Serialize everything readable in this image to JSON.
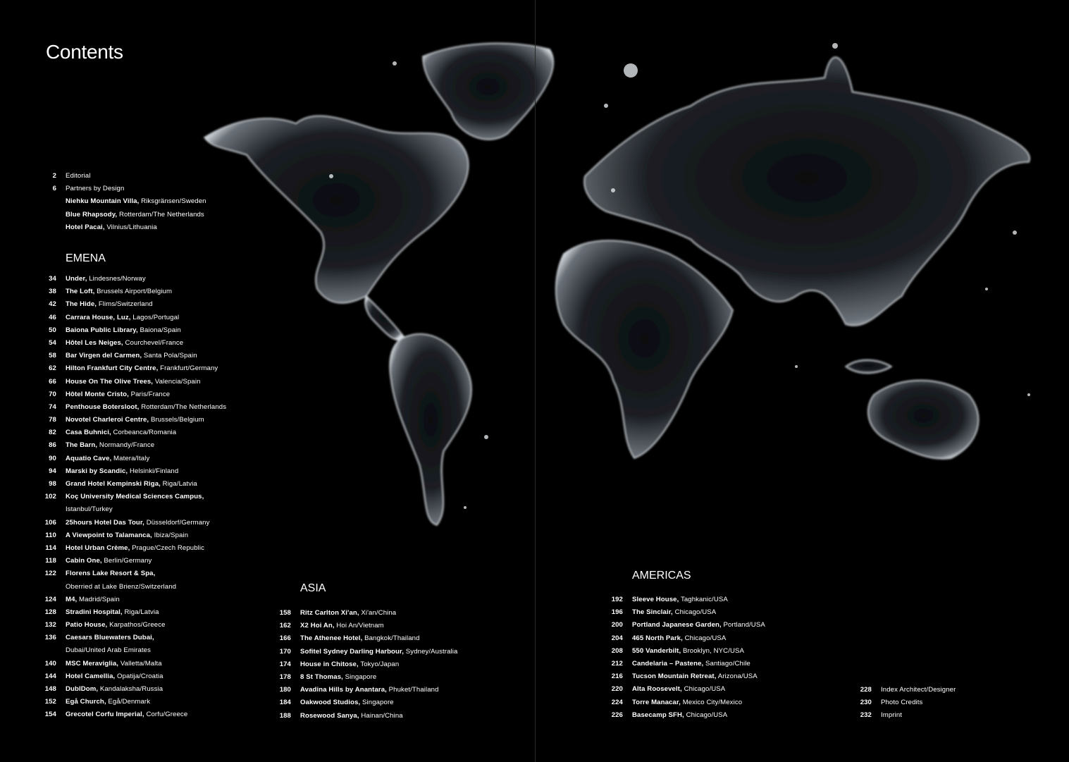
{
  "title": "Contents",
  "intro": [
    {
      "page": "2",
      "bold": "",
      "rest": "Editorial"
    },
    {
      "page": "6",
      "bold": "",
      "rest": "Partners by Design"
    },
    {
      "page": "",
      "bold": "Niehku Mountain Villa,",
      "rest": " Riksgränsen/Sweden"
    },
    {
      "page": "",
      "bold": "Blue Rhapsody,",
      "rest": " Rotterdam/The Netherlands"
    },
    {
      "page": "",
      "bold": "Hotel Pacai,",
      "rest": " Vilnius/Lithuania"
    }
  ],
  "sections": {
    "emena": {
      "heading": "EMENA",
      "entries": [
        {
          "page": "34",
          "bold": "Under,",
          "rest": " Lindesnes/Norway"
        },
        {
          "page": "38",
          "bold": "The Loft,",
          "rest": " Brussels Airport/Belgium"
        },
        {
          "page": "42",
          "bold": "The Hide,",
          "rest": " Flims/Switzerland"
        },
        {
          "page": "46",
          "bold": "Carrara House, Luz,",
          "rest": " Lagos/Portugal"
        },
        {
          "page": "50",
          "bold": "Baiona Public Library,",
          "rest": " Baiona/Spain"
        },
        {
          "page": "54",
          "bold": "Hôtel Les Neiges,",
          "rest": " Courchevel/France"
        },
        {
          "page": "58",
          "bold": "Bar Virgen del Carmen,",
          "rest": " Santa Pola/Spain"
        },
        {
          "page": "62",
          "bold": "Hilton Frankfurt City Centre,",
          "rest": " Frankfurt/Germany"
        },
        {
          "page": "66",
          "bold": "House On The Olive Trees,",
          "rest": " Valencia/Spain"
        },
        {
          "page": "70",
          "bold": "Hôtel Monte Cristo,",
          "rest": " Paris/France"
        },
        {
          "page": "74",
          "bold": "Penthouse Botersloot,",
          "rest": " Rotterdam/The Netherlands"
        },
        {
          "page": "78",
          "bold": "Novotel Charleroi Centre,",
          "rest": " Brussels/Belgium"
        },
        {
          "page": "82",
          "bold": "Casa Buhnici,",
          "rest": " Corbeanca/Romania"
        },
        {
          "page": "86",
          "bold": "The Barn,",
          "rest": " Normandy/France"
        },
        {
          "page": "90",
          "bold": "Aquatio Cave,",
          "rest": " Matera/Italy"
        },
        {
          "page": "94",
          "bold": "Marski by Scandic,",
          "rest": " Helsinki/Finland"
        },
        {
          "page": "98",
          "bold": "Grand Hotel Kempinski Riga,",
          "rest": " Riga/Latvia"
        },
        {
          "page": "102",
          "bold": "Koç University Medical Sciences Campus,",
          "rest": "",
          "line2": "Istanbul/Turkey"
        },
        {
          "page": "106",
          "bold": "25hours Hotel Das Tour,",
          "rest": " Düsseldorf/Germany"
        },
        {
          "page": "110",
          "bold": "A Viewpoint to Talamanca,",
          "rest": " Ibiza/Spain"
        },
        {
          "page": "114",
          "bold": "Hotel Urban Crème,",
          "rest": " Prague/Czech Republic"
        },
        {
          "page": "118",
          "bold": "Cabin One,",
          "rest": " Berlin/Germany"
        },
        {
          "page": "122",
          "bold": "Florens Lake Resort & Spa,",
          "rest": "",
          "line2": "Oberried at Lake Brienz/Switzerland"
        },
        {
          "page": "124",
          "bold": "M4,",
          "rest": " Madrid/Spain"
        },
        {
          "page": "128",
          "bold": "Stradini Hospital,",
          "rest": " Riga/Latvia"
        },
        {
          "page": "132",
          "bold": "Patio House,",
          "rest": " Karpathos/Greece"
        },
        {
          "page": "136",
          "bold": "Caesars Bluewaters Dubai,",
          "rest": "",
          "line2": "Dubai/United Arab Emirates"
        },
        {
          "page": "140",
          "bold": "MSC Meraviglia,",
          "rest": " Valletta/Malta"
        },
        {
          "page": "144",
          "bold": "Hotel Camellia,",
          "rest": " Opatija/Croatia"
        },
        {
          "page": "148",
          "bold": "DublDom,",
          "rest": " Kandalaksha/Russia"
        },
        {
          "page": "152",
          "bold": "Egå Church,",
          "rest": " Egå/Denmark"
        },
        {
          "page": "154",
          "bold": "Grecotel Corfu Imperial,",
          "rest": " Corfu/Greece"
        }
      ]
    },
    "asia": {
      "heading": "ASIA",
      "entries": [
        {
          "page": "158",
          "bold": "Ritz Carlton Xi'an,",
          "rest": " Xi'an/China"
        },
        {
          "page": "162",
          "bold": "X2 Hoi An,",
          "rest": " Hoi An/Vietnam"
        },
        {
          "page": "166",
          "bold": "The Athenee Hotel,",
          "rest": " Bangkok/Thailand"
        },
        {
          "page": "170",
          "bold": "Sofitel Sydney Darling Harbour,",
          "rest": " Sydney/Australia"
        },
        {
          "page": "174",
          "bold": "House in Chitose,",
          "rest": " Tokyo/Japan"
        },
        {
          "page": "178",
          "bold": "8 St Thomas,",
          "rest": " Singapore"
        },
        {
          "page": "180",
          "bold": "Avadina Hills by Anantara,",
          "rest": " Phuket/Thailand"
        },
        {
          "page": "184",
          "bold": "Oakwood Studios,",
          "rest": " Singapore"
        },
        {
          "page": "188",
          "bold": "Rosewood Sanya,",
          "rest": " Hainan/China"
        }
      ]
    },
    "americas": {
      "heading": "AMERICAS",
      "entries": [
        {
          "page": "192",
          "bold": "Sleeve House,",
          "rest": " Taghkanic/USA"
        },
        {
          "page": "196",
          "bold": "The Sinclair,",
          "rest": " Chicago/USA"
        },
        {
          "page": "200",
          "bold": "Portland Japanese Garden,",
          "rest": " Portland/USA"
        },
        {
          "page": "204",
          "bold": "465 North Park,",
          "rest": " Chicago/USA"
        },
        {
          "page": "208",
          "bold": "550 Vanderbilt,",
          "rest": " Brooklyn, NYC/USA"
        },
        {
          "page": "212",
          "bold": "Candelaria – Pastene,",
          "rest": " Santiago/Chile"
        },
        {
          "page": "216",
          "bold": "Tucson Mountain Retreat,",
          "rest": " Arizona/USA"
        },
        {
          "page": "220",
          "bold": "Alta Roosevelt,",
          "rest": " Chicago/USA"
        },
        {
          "page": "224",
          "bold": "Torre Manacar,",
          "rest": " Mexico City/Mexico"
        },
        {
          "page": "226",
          "bold": "Basecamp SFH,",
          "rest": " Chicago/USA"
        }
      ]
    },
    "appendix": {
      "entries": [
        {
          "page": "228",
          "bold": "",
          "rest": "Index Architect/Designer"
        },
        {
          "page": "230",
          "bold": "",
          "rest": "Photo Credits"
        },
        {
          "page": "232",
          "bold": "",
          "rest": "Imprint"
        }
      ]
    }
  },
  "image": {
    "subject": "water-splash-world-map",
    "colors": {
      "background": "#000000",
      "water": "#c8ccd0"
    }
  }
}
